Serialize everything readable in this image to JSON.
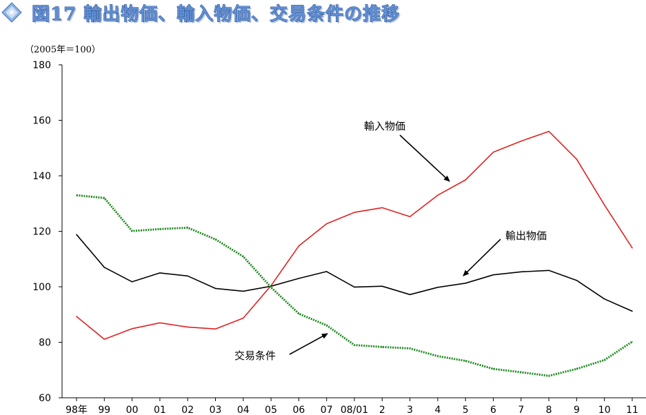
{
  "title": "図17 輸出物価、輸入物価、交易条件の推移",
  "unit_label": "（2005年＝100）",
  "colors": {
    "title_fill": "#5f8fd3",
    "import_line": "#e02020",
    "export_line": "#000000",
    "terms_line": "#1f8a1f"
  },
  "chart_data": {
    "type": "line",
    "title": "図17 輸出物価、輸入物価、交易条件の推移",
    "ylabel": "（2005年＝100）",
    "ylim": [
      60,
      180
    ],
    "yticks": [
      60,
      80,
      100,
      120,
      140,
      160,
      180
    ],
    "grid": false,
    "categories": [
      "98年",
      "99",
      "00",
      "01",
      "02",
      "03",
      "04",
      "05",
      "06",
      "07",
      "08/01",
      "2",
      "3",
      "4",
      "5",
      "6",
      "7",
      "8",
      "9",
      "10",
      "11"
    ],
    "series": [
      {
        "name": "輸入物価",
        "color": "#e02020",
        "style": "solid",
        "values": [
          89.3,
          81.1,
          84.9,
          87.0,
          85.5,
          84.8,
          88.7,
          100.4,
          114.7,
          122.7,
          126.8,
          128.5,
          125.3,
          133.0,
          138.5,
          148.5,
          152.5,
          156.0,
          146.0,
          129.5,
          114.0
        ]
      },
      {
        "name": "輸出物価",
        "color": "#000000",
        "style": "solid",
        "values": [
          118.8,
          107.0,
          101.8,
          105.0,
          103.9,
          99.4,
          98.4,
          100.2,
          103.0,
          105.5,
          99.9,
          100.2,
          97.2,
          99.8,
          101.3,
          104.3,
          105.4,
          105.9,
          102.3,
          95.6,
          91.2
        ]
      },
      {
        "name": "交易条件",
        "color": "#1f8a1f",
        "style": "dotted",
        "values": [
          133.0,
          132.0,
          120.1,
          120.8,
          121.3,
          117.1,
          110.9,
          99.8,
          90.3,
          86.1,
          79.0,
          78.3,
          77.8,
          75.0,
          73.3,
          70.4,
          69.2,
          67.9,
          70.4,
          73.6,
          80.2
        ]
      }
    ],
    "annotations": [
      {
        "text": "輸入物価",
        "series": "輸入物価"
      },
      {
        "text": "輸出物価",
        "series": "輸出物価"
      },
      {
        "text": "交易条件",
        "series": "交易条件"
      }
    ]
  }
}
